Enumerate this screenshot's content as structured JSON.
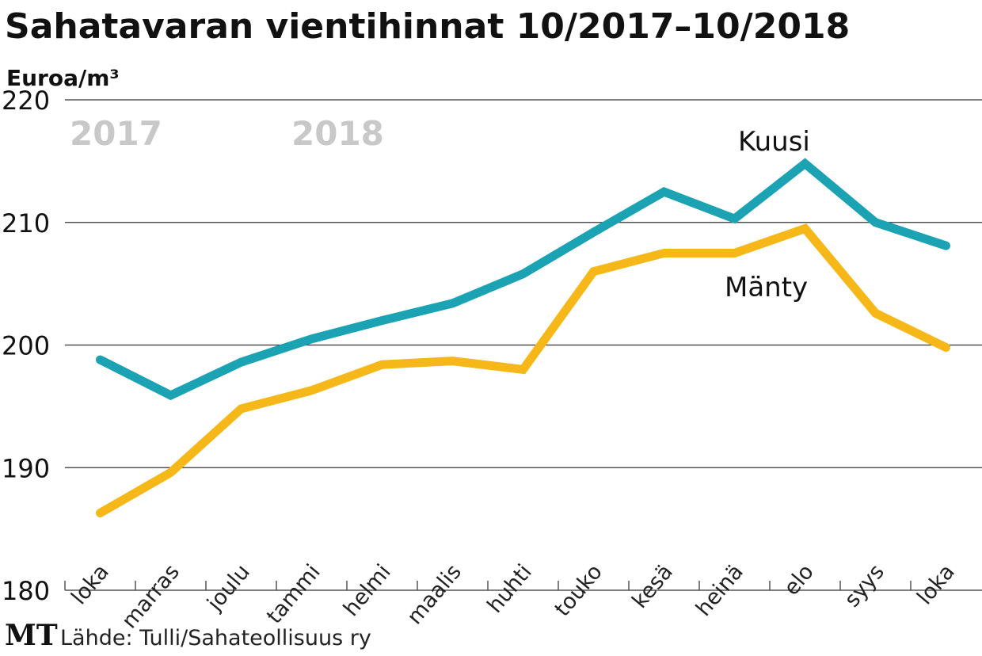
{
  "chart_data": {
    "type": "line",
    "title": "Sahatavaran vientihinnat 10/2017–10/2018",
    "ylabel": "Euroa/m³",
    "xlabel": "",
    "ylim": [
      180,
      220
    ],
    "yticks": [
      "180",
      "190",
      "200",
      "210",
      "220"
    ],
    "grid": true,
    "categories": [
      "loka",
      "marras",
      "joulu",
      "tammi",
      "helmi",
      "maalis",
      "huhti",
      "touko",
      "kesä",
      "heinä",
      "elo",
      "syys",
      "loka"
    ],
    "year_labels": [
      "2017",
      "2018"
    ],
    "series": [
      {
        "name": "Kuusi",
        "color": "#1ba3b3",
        "values": [
          198.8,
          195.9,
          198.6,
          200.5,
          202.0,
          203.4,
          205.8,
          209.2,
          212.5,
          210.3,
          214.8,
          210.0,
          208.1
        ]
      },
      {
        "name": "Mänty",
        "color": "#f5b818",
        "values": [
          186.3,
          189.6,
          194.8,
          196.3,
          198.4,
          198.7,
          198.0,
          206.0,
          207.5,
          207.5,
          209.5,
          202.6,
          199.8
        ]
      }
    ]
  },
  "footer": {
    "logo": "MT",
    "source": "Lähde: Tulli/Sahateollisuus ry"
  }
}
